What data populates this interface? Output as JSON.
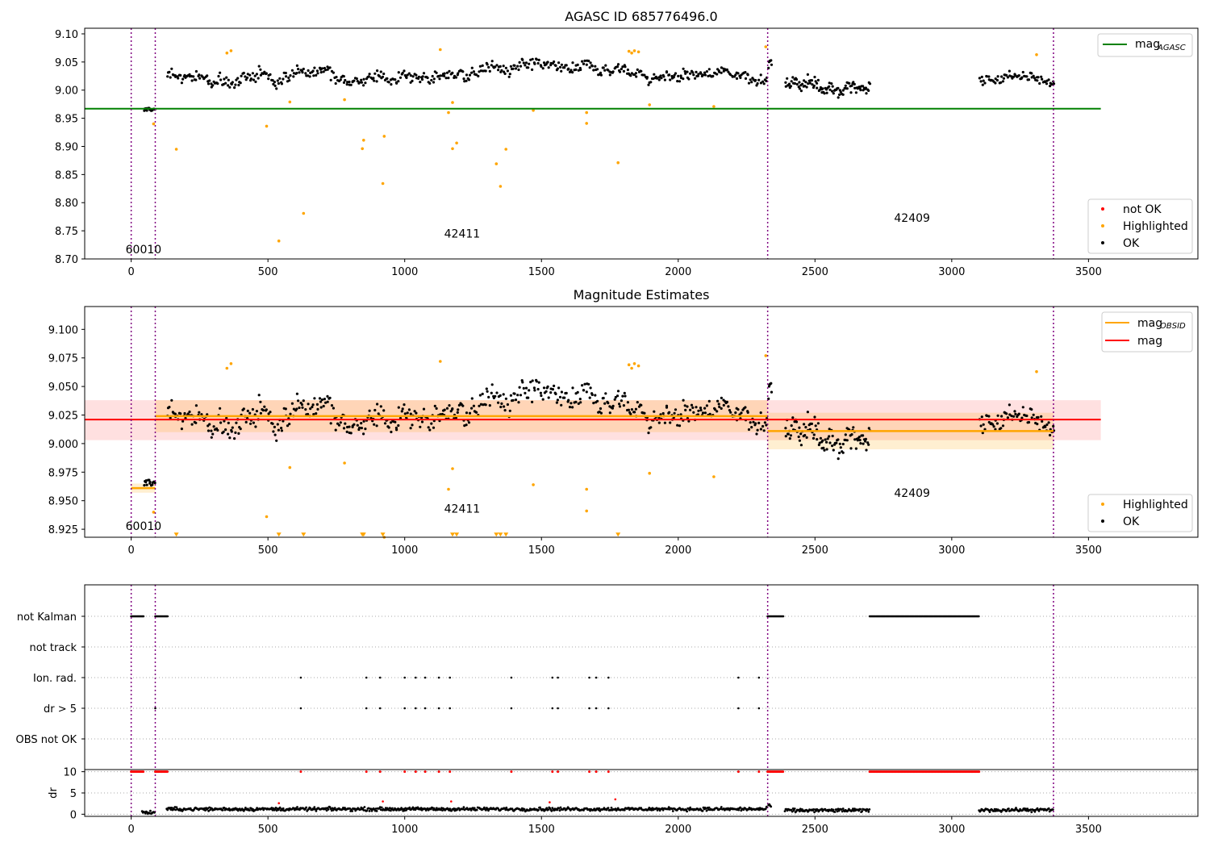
{
  "chart_data": [
    {
      "type": "scatter",
      "title": "AGASC ID 685776496.0",
      "xlim": [
        -170,
        3900
      ],
      "ylim": [
        8.7,
        9.11
      ],
      "xticks": [
        "0",
        "500",
        "1000",
        "1500",
        "2000",
        "2500",
        "3000",
        "3500"
      ],
      "yticks": [
        "8.70",
        "8.75",
        "8.80",
        "8.85",
        "8.90",
        "8.95",
        "9.00",
        "9.05",
        "9.10"
      ],
      "obs_boundaries": [
        0,
        88,
        2327,
        3372
      ],
      "annotations": [
        {
          "text": "60010",
          "x": 45,
          "y": 8.717
        },
        {
          "text": "42411",
          "x": 1210,
          "y": 8.745
        },
        {
          "text": "42409",
          "x": 2855,
          "y": 8.773
        }
      ],
      "lines": [
        {
          "name": "mag",
          "sub": "AGASC",
          "color": "#008000",
          "x": [
            -170,
            3545
          ],
          "y": [
            8.967,
            8.967
          ]
        }
      ],
      "segments": [
        {
          "x0": 45,
          "x1": 85,
          "mean": 8.963,
          "noise": 0.005,
          "step": 3
        },
        {
          "x0": 130,
          "x1": 2325,
          "mean": 9.025,
          "noise": 0.013,
          "step": 4
        },
        {
          "x0": 2330,
          "x1": 2340,
          "mean": 9.045,
          "noise": 0.01,
          "step": 2
        },
        {
          "x0": 2390,
          "x1": 2700,
          "mean": 9.008,
          "noise": 0.014,
          "step": 3
        },
        {
          "x0": 3100,
          "x1": 3372,
          "mean": 9.018,
          "noise": 0.012,
          "step": 4
        }
      ],
      "highlighted": [
        {
          "x": 82,
          "y": 8.94
        },
        {
          "x": 165,
          "y": 8.895
        },
        {
          "x": 495,
          "y": 8.936
        },
        {
          "x": 540,
          "y": 8.732
        },
        {
          "x": 580,
          "y": 8.979
        },
        {
          "x": 630,
          "y": 8.781
        },
        {
          "x": 780,
          "y": 8.983
        },
        {
          "x": 845,
          "y": 8.896
        },
        {
          "x": 850,
          "y": 8.911
        },
        {
          "x": 920,
          "y": 8.834
        },
        {
          "x": 925,
          "y": 8.918
        },
        {
          "x": 1130,
          "y": 9.072
        },
        {
          "x": 1160,
          "y": 8.96
        },
        {
          "x": 1175,
          "y": 8.978
        },
        {
          "x": 1175,
          "y": 8.896
        },
        {
          "x": 1190,
          "y": 8.906
        },
        {
          "x": 1335,
          "y": 8.869
        },
        {
          "x": 1350,
          "y": 8.829
        },
        {
          "x": 1370,
          "y": 8.895
        },
        {
          "x": 1470,
          "y": 8.964
        },
        {
          "x": 1665,
          "y": 8.96
        },
        {
          "x": 1665,
          "y": 8.941
        },
        {
          "x": 1780,
          "y": 8.871
        },
        {
          "x": 1820,
          "y": 9.069
        },
        {
          "x": 1830,
          "y": 9.066
        },
        {
          "x": 1840,
          "y": 9.07
        },
        {
          "x": 1855,
          "y": 9.068
        },
        {
          "x": 1895,
          "y": 8.974
        },
        {
          "x": 2130,
          "y": 8.971
        },
        {
          "x": 2320,
          "y": 9.077
        },
        {
          "x": 3310,
          "y": 9.063
        },
        {
          "x": 350,
          "y": 9.066
        },
        {
          "x": 365,
          "y": 9.07
        }
      ],
      "legend_top": [
        {
          "label": "mag",
          "sub": "AGASC",
          "color": "#008000"
        }
      ],
      "legend_bottom": [
        {
          "label": "not OK",
          "color": "#ff0000"
        },
        {
          "label": "Highlighted",
          "color": "#ffa500"
        },
        {
          "label": "OK",
          "color": "#000000"
        }
      ]
    },
    {
      "type": "scatter",
      "title": "Magnitude Estimates",
      "xlim": [
        -170,
        3900
      ],
      "ylim": [
        8.918,
        9.12
      ],
      "xticks": [
        "0",
        "500",
        "1000",
        "1500",
        "2000",
        "2500",
        "3000",
        "3500"
      ],
      "yticks": [
        "8.925",
        "8.950",
        "8.975",
        "9.000",
        "9.025",
        "9.050",
        "9.075",
        "9.100"
      ],
      "obs_boundaries": [
        0,
        88,
        2327,
        3372
      ],
      "annotations": [
        {
          "text": "60010",
          "x": 45,
          "y": 8.928
        },
        {
          "text": "42411",
          "x": 1210,
          "y": 8.943
        },
        {
          "text": "42409",
          "x": 2855,
          "y": 8.957
        }
      ],
      "mag_line": {
        "name": "mag",
        "color": "#ff0000",
        "x": [
          -170,
          3545
        ],
        "y": 9.021,
        "band": [
          9.003,
          9.038
        ]
      },
      "obsid_means": [
        {
          "x0": 0,
          "x1": 88,
          "y": 8.961,
          "band": [
            8.957,
            8.965
          ]
        },
        {
          "x0": 88,
          "x1": 2327,
          "y": 9.024,
          "band": [
            9.01,
            9.038
          ]
        },
        {
          "x0": 2327,
          "x1": 3372,
          "y": 9.011,
          "band": [
            8.995,
            9.027
          ]
        }
      ],
      "legend_top": [
        {
          "label": "mag",
          "sub": "OBSID",
          "color": "#ffa500"
        },
        {
          "label": "mag",
          "sub": "",
          "color": "#ff0000"
        }
      ],
      "legend_bottom": [
        {
          "label": "Highlighted",
          "color": "#ffa500"
        },
        {
          "label": "OK",
          "color": "#000000"
        }
      ]
    },
    {
      "type": "scatter",
      "title": "",
      "xlim": [
        -170,
        3900
      ],
      "xticks": [
        "0",
        "500",
        "1000",
        "1500",
        "2000",
        "2500",
        "3000",
        "3500"
      ],
      "flag_rows": [
        "not Kalman",
        "not track",
        "Ion. rad.",
        "dr > 5",
        "OBS not OK"
      ],
      "not_kalman": [
        [
          0,
          45
        ],
        [
          88,
          135
        ],
        [
          2327,
          2385
        ],
        [
          2700,
          3100
        ]
      ],
      "ion_rad_x": [
        620,
        860,
        910,
        1000,
        1040,
        1075,
        1125,
        1165,
        1390,
        1540,
        1560,
        1675,
        1700,
        1745,
        2220,
        2295
      ],
      "dr_gt5_x": [
        88,
        620,
        860,
        910,
        1000,
        1040,
        1075,
        1125,
        1165,
        1390,
        1540,
        1560,
        1675,
        1700,
        1745,
        2220,
        2295
      ],
      "dr": {
        "ylabel": "dr",
        "yticks": [
          "0",
          "5",
          "10"
        ],
        "ylim": [
          -0.5,
          10.5
        ],
        "segments": [
          {
            "x0": 40,
            "x1": 85,
            "mean": 0.4
          },
          {
            "x0": 130,
            "x1": 2325,
            "mean": 1.2
          },
          {
            "x0": 2330,
            "x1": 2340,
            "mean": 2.0
          },
          {
            "x0": 2390,
            "x1": 2700,
            "mean": 0.9
          },
          {
            "x0": 3100,
            "x1": 3372,
            "mean": 1.0
          }
        ],
        "spikes": [
          {
            "x": 540,
            "y": 2.6
          },
          {
            "x": 920,
            "y": 3.0
          },
          {
            "x": 1170,
            "y": 3.0
          },
          {
            "x": 1530,
            "y": 2.8
          },
          {
            "x": 1770,
            "y": 3.5
          }
        ],
        "red_at_10": [
          [
            0,
            45
          ],
          [
            88,
            135
          ],
          [
            2327,
            2385
          ],
          [
            2700,
            3100
          ]
        ],
        "red_single_x": [
          620,
          860,
          910,
          1000,
          1040,
          1075,
          1125,
          1165,
          1390,
          1540,
          1560,
          1675,
          1700,
          1745,
          2220,
          2295
        ]
      }
    }
  ]
}
